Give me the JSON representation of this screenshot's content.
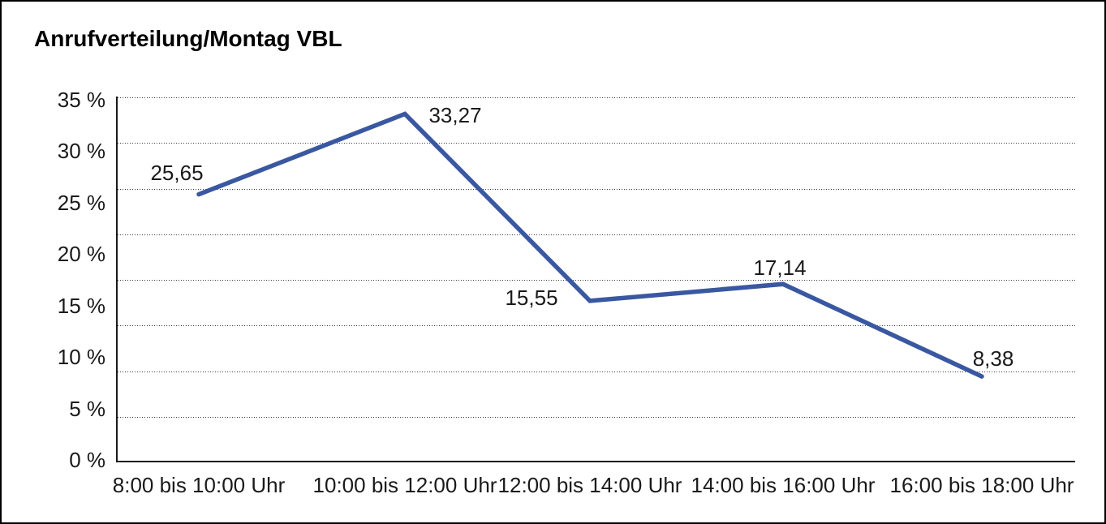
{
  "window": {
    "background": "#ffffff",
    "border_color": "#000000"
  },
  "chart_data": {
    "type": "line",
    "title": "Anrufverteilung/Montag VBL",
    "categories": [
      "8:00 bis 10:00 Uhr",
      "10:00 bis 12:00 Uhr",
      "12:00 bis 14:00 Uhr",
      "14:00 bis 16:00 Uhr",
      "16:00 bis 18:00 Uhr"
    ],
    "values": [
      25.65,
      33.27,
      15.55,
      17.14,
      8.38
    ],
    "value_labels": [
      "25,65",
      "33,27",
      "15,55",
      "17,14",
      "8,38"
    ],
    "y_tick_labels": [
      "35 %",
      "30 %",
      "25 %",
      "20 %",
      "15 %",
      "10 %",
      "5 %",
      "0 %"
    ],
    "ylim": [
      0,
      35
    ],
    "y_tick_step": 5,
    "xlabel": "",
    "ylabel": "",
    "legend": "none",
    "grid": "horizontal dotted",
    "line_color": "#3a58a1",
    "axis_color": "#1a1a1a",
    "text_color": "#1a1a1a"
  }
}
